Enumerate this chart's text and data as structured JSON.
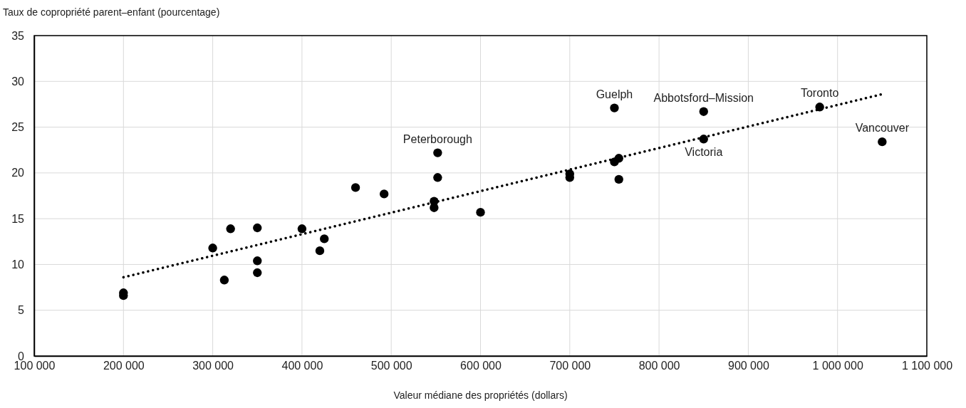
{
  "chart_data": {
    "type": "scatter",
    "ylabel": "Taux de copropriété parent–enfant (pourcentage)",
    "xlabel": "Valeur médiane des propriétés (dollars)",
    "xlim": [
      100000,
      1100000
    ],
    "xticks": [
      {
        "value": 100000,
        "label": "100 000"
      },
      {
        "value": 200000,
        "label": "200 000"
      },
      {
        "value": 300000,
        "label": "300 000"
      },
      {
        "value": 400000,
        "label": "400 000"
      },
      {
        "value": 500000,
        "label": "500 000"
      },
      {
        "value": 600000,
        "label": "600 000"
      },
      {
        "value": 700000,
        "label": "700 000"
      },
      {
        "value": 800000,
        "label": "800 000"
      },
      {
        "value": 900000,
        "label": "900 000"
      },
      {
        "value": 1000000,
        "label": "1 000 000"
      },
      {
        "value": 1100000,
        "label": "1 100 000"
      }
    ],
    "ylim": [
      0,
      35
    ],
    "yticks": [
      0,
      5,
      10,
      15,
      20,
      25,
      30,
      35
    ],
    "grid": true,
    "marker": "circle",
    "series": [
      {
        "color": "#000000",
        "x": [
          200000,
          200000,
          300000,
          313000,
          320000,
          350000,
          350000,
          350000,
          400000,
          420000,
          425000,
          460000,
          492000,
          548000,
          548000,
          552000,
          552000,
          600000,
          700000,
          700000,
          750000,
          750000,
          755000,
          755000,
          850000,
          850000,
          980000,
          1050000
        ],
        "values": [
          6.9,
          6.6,
          11.8,
          8.3,
          13.9,
          14.0,
          10.4,
          9.1,
          13.9,
          11.5,
          12.8,
          18.4,
          17.7,
          16.9,
          16.2,
          22.2,
          19.5,
          15.7,
          19.9,
          19.5,
          27.1,
          21.2,
          21.6,
          19.3,
          26.7,
          23.7,
          27.2,
          23.4
        ]
      },
      {
        "type": "line",
        "color": "#000000",
        "line_style": "dotted",
        "marker": "none",
        "x": [
          200000,
          1050000
        ],
        "values": [
          8.6,
          28.6
        ]
      }
    ],
    "annotations": [
      {
        "text": "Peterborough",
        "x": 552000,
        "y": 22.2
      },
      {
        "text": "Guelph",
        "x": 750000,
        "y": 27.1
      },
      {
        "text": "Abbotsford–Mission",
        "x": 850000,
        "y": 26.7
      },
      {
        "text": "Victoria",
        "x": 850000,
        "y": 23.7
      },
      {
        "text": "Toronto",
        "x": 980000,
        "y": 27.2
      },
      {
        "text": "Vancouver",
        "x": 1050000,
        "y": 23.4
      }
    ]
  }
}
